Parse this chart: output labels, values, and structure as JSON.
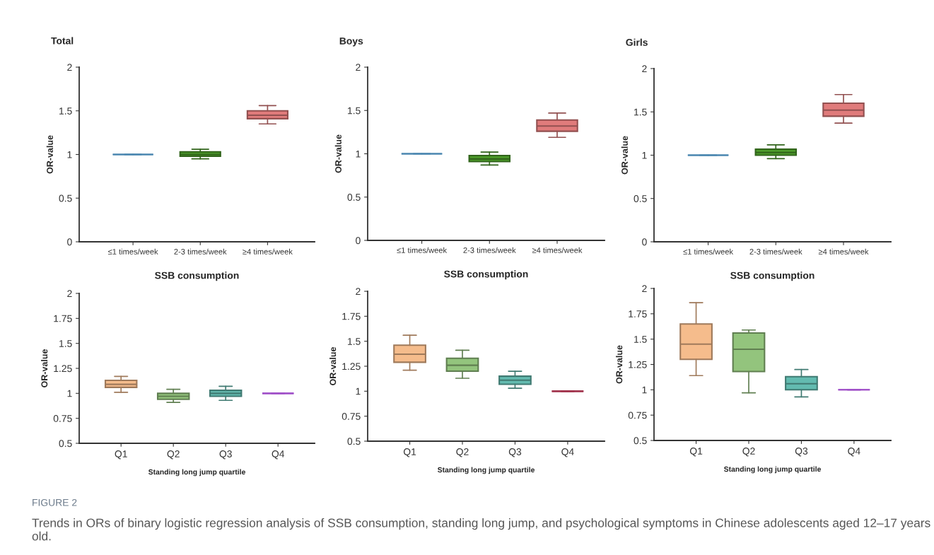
{
  "chart_data": [
    {
      "type": "box",
      "title": "Total",
      "xlabel": "SSB consumption",
      "ylabel": "OR-value",
      "categories": [
        "≤1 times/week",
        "2-3 times/week",
        "≥4 times/week"
      ],
      "ylim": [
        0,
        2
      ],
      "yticks": [
        0,
        0.5,
        1,
        1.5,
        2
      ],
      "colors": [
        "#4a86b0",
        "#4c9a2a",
        "#e07b7b"
      ],
      "boxes": [
        {
          "low": 1,
          "q1": 1,
          "median": 1,
          "q3": 1,
          "high": 1
        },
        {
          "low": 0.95,
          "q1": 0.98,
          "median": 1.0,
          "q3": 1.03,
          "high": 1.06
        },
        {
          "low": 1.35,
          "q1": 1.41,
          "median": 1.45,
          "q3": 1.5,
          "high": 1.56
        }
      ],
      "annotations": [
        "FIGURE 2",
        "Trends in ORs of binary logistic regression analysis of SSB consumption, standing long jump, and psychological symptoms in Chinese adolescents aged 12–17 years old."
      ]
    },
    {
      "type": "box",
      "title": "Boys",
      "xlabel": "SSB consumption",
      "ylabel": "OR-value",
      "categories": [
        "≤1 times/week",
        "2-3 times/week",
        "≥4 times/week"
      ],
      "ylim": [
        0,
        2
      ],
      "yticks": [
        0,
        0.5,
        1,
        1.5,
        2
      ],
      "colors": [
        "#4a86b0",
        "#4c9a2a",
        "#e07b7b"
      ],
      "boxes": [
        {
          "low": 1,
          "q1": 1,
          "median": 1,
          "q3": 1,
          "high": 1
        },
        {
          "low": 0.87,
          "q1": 0.91,
          "median": 0.94,
          "q3": 0.98,
          "high": 1.02
        },
        {
          "low": 1.19,
          "q1": 1.26,
          "median": 1.32,
          "q3": 1.39,
          "high": 1.47
        }
      ]
    },
    {
      "type": "box",
      "title": "Girls",
      "xlabel": "SSB consumption",
      "ylabel": "OR-value",
      "categories": [
        "≤1 times/week",
        "2-3 times/week",
        "≥4 times/week"
      ],
      "ylim": [
        0,
        2
      ],
      "yticks": [
        0,
        0.5,
        1,
        1.5,
        2
      ],
      "colors": [
        "#4a86b0",
        "#4c9a2a",
        "#e07b7b"
      ],
      "boxes": [
        {
          "low": 1,
          "q1": 1,
          "median": 1,
          "q3": 1,
          "high": 1
        },
        {
          "low": 0.96,
          "q1": 1.0,
          "median": 1.03,
          "q3": 1.07,
          "high": 1.12
        },
        {
          "low": 1.37,
          "q1": 1.45,
          "median": 1.52,
          "q3": 1.6,
          "high": 1.7
        }
      ]
    },
    {
      "type": "box",
      "xlabel": "Standing long jump quartile",
      "ylabel": "OR-value",
      "categories": [
        "Q1",
        "Q2",
        "Q3",
        "Q4"
      ],
      "ylim": [
        0.5,
        2
      ],
      "yticks": [
        0.5,
        0.75,
        1,
        1.25,
        1.5,
        1.75,
        2
      ],
      "colors": [
        "#f5bc8c",
        "#93c47d",
        "#63bbb0",
        "#a050c8"
      ],
      "boxes": [
        {
          "low": 1.01,
          "q1": 1.06,
          "median": 1.09,
          "q3": 1.13,
          "high": 1.17
        },
        {
          "low": 0.91,
          "q1": 0.94,
          "median": 0.97,
          "q3": 1.0,
          "high": 1.04
        },
        {
          "low": 0.93,
          "q1": 0.97,
          "median": 1.0,
          "q3": 1.03,
          "high": 1.07
        },
        {
          "low": 1,
          "q1": 1,
          "median": 1,
          "q3": 1,
          "high": 1
        }
      ]
    },
    {
      "type": "box",
      "xlabel": "Standing long jump quartile",
      "ylabel": "OR-value",
      "categories": [
        "Q1",
        "Q2",
        "Q3",
        "Q4"
      ],
      "ylim": [
        0.5,
        2
      ],
      "yticks": [
        0.5,
        0.75,
        1,
        1.25,
        1.5,
        1.75,
        2
      ],
      "colors": [
        "#f5bc8c",
        "#93c47d",
        "#63bbb0",
        "#a0304a"
      ],
      "boxes": [
        {
          "low": 1.21,
          "q1": 1.29,
          "median": 1.37,
          "q3": 1.46,
          "high": 1.56
        },
        {
          "low": 1.13,
          "q1": 1.2,
          "median": 1.26,
          "q3": 1.33,
          "high": 1.41
        },
        {
          "low": 1.03,
          "q1": 1.07,
          "median": 1.11,
          "q3": 1.15,
          "high": 1.2
        },
        {
          "low": 1,
          "q1": 1,
          "median": 1,
          "q3": 1,
          "high": 1
        }
      ]
    },
    {
      "type": "box",
      "xlabel": "Standing long jump quartile",
      "ylabel": "OR-value",
      "categories": [
        "Q1",
        "Q2",
        "Q3",
        "Q4"
      ],
      "ylim": [
        0.5,
        2
      ],
      "yticks": [
        0.5,
        0.75,
        1,
        1.25,
        1.5,
        1.75,
        2
      ],
      "colors": [
        "#f5bc8c",
        "#93c47d",
        "#63bbb0",
        "#a050c8"
      ],
      "boxes": [
        {
          "low": 1.14,
          "q1": 1.3,
          "median": 1.45,
          "q3": 1.65,
          "high": 1.86
        },
        {
          "low": 0.97,
          "q1": 1.18,
          "median": 1.4,
          "q3": 1.56,
          "high": 1.59
        },
        {
          "low": 0.93,
          "q1": 1.0,
          "median": 1.06,
          "q3": 1.13,
          "high": 1.2
        },
        {
          "low": 1,
          "q1": 1,
          "median": 1,
          "q3": 1,
          "high": 1
        }
      ]
    }
  ]
}
